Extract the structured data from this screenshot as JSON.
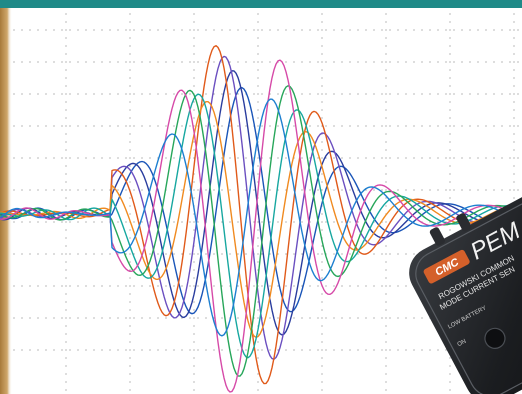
{
  "colors": {
    "top_band": "#1f8a88",
    "grid": "#8a8a8a",
    "waves": [
      "#1a55b8",
      "#2a3d9e",
      "#6b4fc0",
      "#e05a1a",
      "#f08a20",
      "#17a7a0",
      "#27a65a",
      "#d64aa8",
      "#1d7fd0"
    ],
    "device_body": "#1b1d20",
    "device_label": "#d4602a"
  },
  "device": {
    "badge": "CMC",
    "brand": "PEM",
    "line1": "ROGOWSKI COMMON",
    "line2": "MODE CURRENT SEN",
    "line3": "LOW BATTERY",
    "on_label": "ON"
  }
}
